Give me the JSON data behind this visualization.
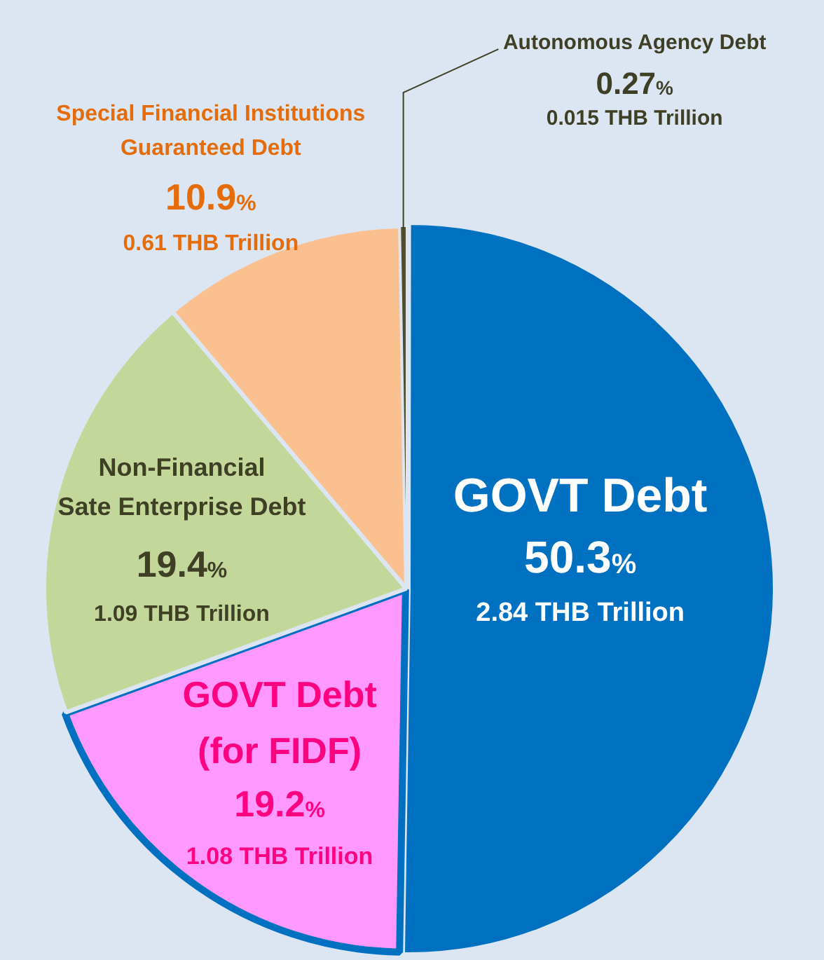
{
  "chart_data": {
    "type": "pie",
    "categories": [
      "GOVT Debt",
      "GOVT Debt\n(for FIDF)",
      "Non-Financial\nSate Enterprise Debt",
      "Special Financial Institutions\nGuaranteed Debt",
      "Autonomous Agency Debt"
    ],
    "values": [
      50.3,
      19.2,
      19.4,
      10.9,
      0.27
    ],
    "colors": [
      "#0070c0",
      "#ff99ff",
      "#c4d79b",
      "#fac090",
      "#4f4f2f"
    ],
    "value_labels": [
      "50.3%",
      "19.2%",
      "19.4%",
      "10.9%",
      "0.27%"
    ],
    "annotations": [
      {
        "text": "2.84 THB Trillion",
        "x": "GOVT Debt"
      },
      {
        "text": "1.08 THB Trillion",
        "x": "GOVT Debt\n(for FIDF)"
      },
      {
        "text": "1.09 THB Trillion",
        "x": "Non-Financial\nSate Enterprise Debt"
      },
      {
        "text": "0.61 THB Trillion",
        "x": "Special Financial Institutions\nGuaranteed Debt"
      },
      {
        "text": "0.015 THB Trillion",
        "x": "Autonomous Agency Debt"
      }
    ]
  }
}
